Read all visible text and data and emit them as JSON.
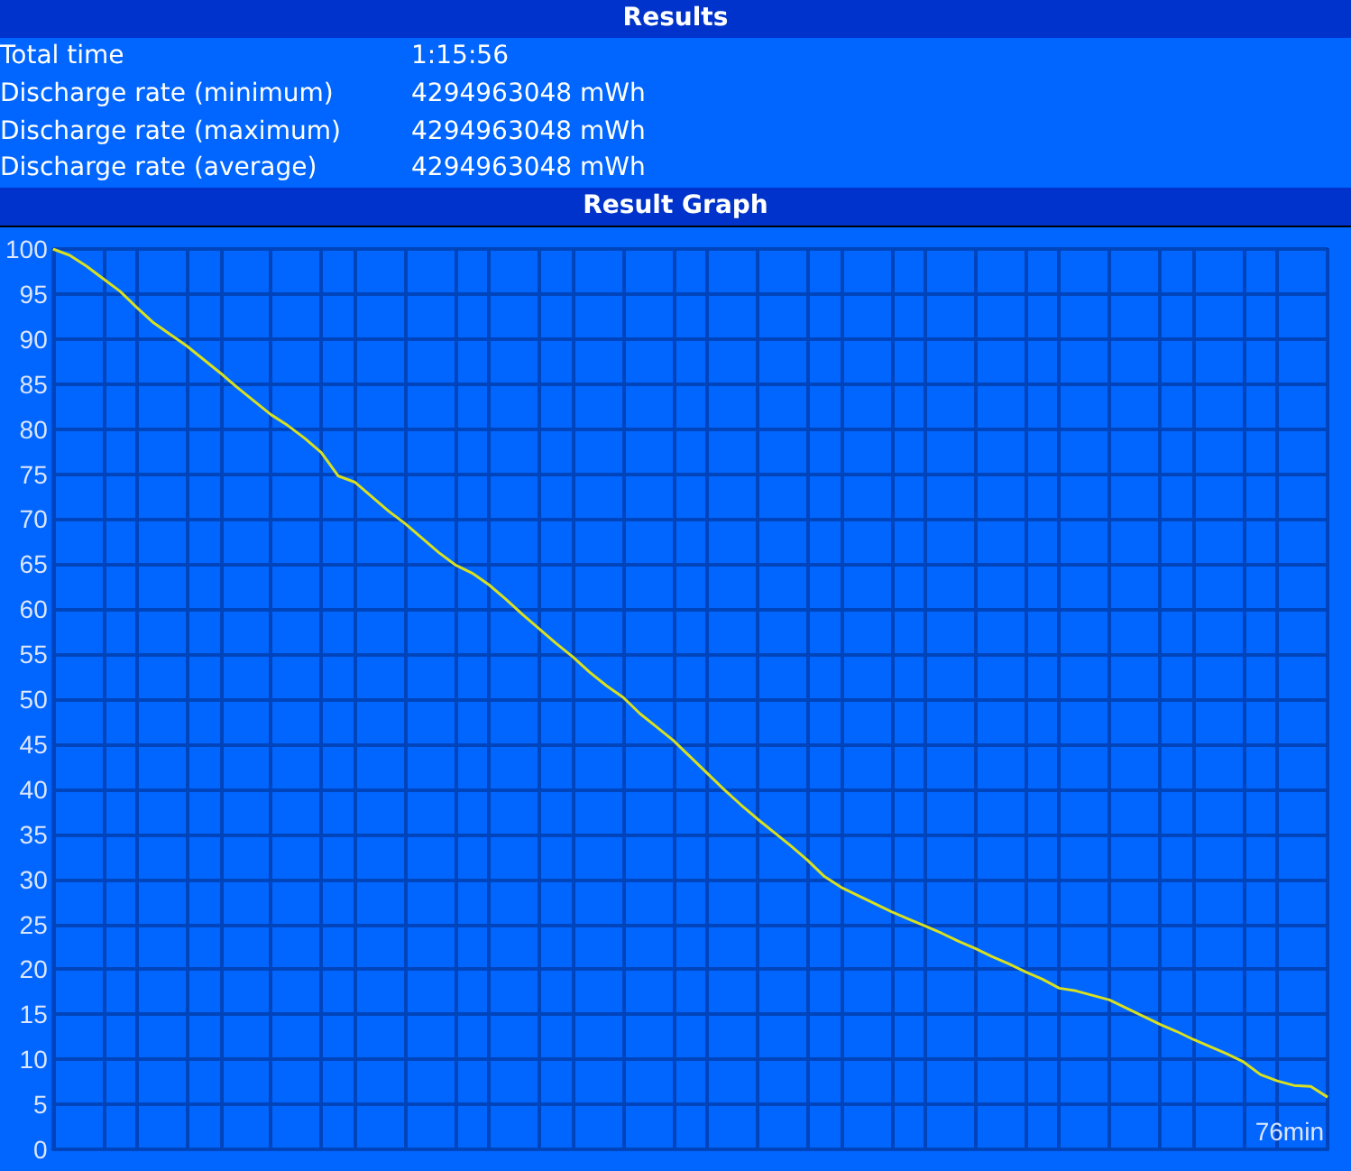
{
  "chart_data": {
    "type": "line",
    "title": "Results",
    "subtitle": "Result Graph",
    "xlabel": "76min",
    "annotations": [
      "Total time",
      "1:15:56",
      "Discharge rate (minimum)",
      "4294963048 mWh",
      "Discharge rate (maximum)",
      "4294963048 mWh",
      "Discharge rate (average)",
      "4294963048 mWh"
    ],
    "categories": [
      null,
      null,
      null,
      null,
      null,
      null,
      null,
      null,
      null,
      null,
      null,
      null,
      null,
      null,
      null,
      null,
      null,
      null,
      null,
      null,
      null,
      null,
      null,
      null,
      null,
      null,
      null,
      null,
      null,
      null,
      null,
      null,
      null,
      null,
      null,
      null,
      null,
      null,
      null,
      null,
      null,
      null,
      null,
      null,
      null,
      null,
      null,
      null,
      null,
      null,
      null,
      null,
      null,
      null,
      null,
      null,
      null,
      null,
      null,
      null,
      null,
      null,
      null,
      null,
      null,
      null,
      null,
      null,
      null,
      null,
      null,
      null,
      null,
      null,
      null,
      null,
      null
    ],
    "series": [
      {
        "color": "#d8e020",
        "values": [
          100,
          99.3,
          98.1,
          96.7,
          95.3,
          93.5,
          91.8,
          90.5,
          89.2,
          87.7,
          86.2,
          84.6,
          83.1,
          81.6,
          80.4,
          79.0,
          77.4,
          74.8,
          74.1,
          72.5,
          70.9,
          69.5,
          67.9,
          66.3,
          64.9,
          64.0,
          62.7,
          61.1,
          59.4,
          57.8,
          56.2,
          54.7,
          53.0,
          51.5,
          50.2,
          48.4,
          46.9,
          45.4,
          43.6,
          41.8,
          40.0,
          38.3,
          36.7,
          35.2,
          33.7,
          32.1,
          30.3,
          29.1,
          28.2,
          27.3,
          26.4,
          25.6,
          24.8,
          24.0,
          23.1,
          22.3,
          21.4,
          20.6,
          19.7,
          18.9,
          17.9,
          17.6,
          17.1,
          16.6,
          15.7,
          14.8,
          13.9,
          13.1,
          12.2,
          11.4,
          10.6,
          9.7,
          8.3,
          7.6,
          7.1,
          7.0,
          5.8
        ]
      }
    ],
    "ylim": [
      0,
      100
    ],
    "yticks": [
      0,
      5,
      10,
      15,
      20,
      25,
      30,
      35,
      40,
      45,
      50,
      55,
      60,
      65,
      70,
      75,
      80,
      85,
      90,
      95,
      100
    ],
    "grid": true,
    "marker": "none",
    "line_style": "solid"
  }
}
